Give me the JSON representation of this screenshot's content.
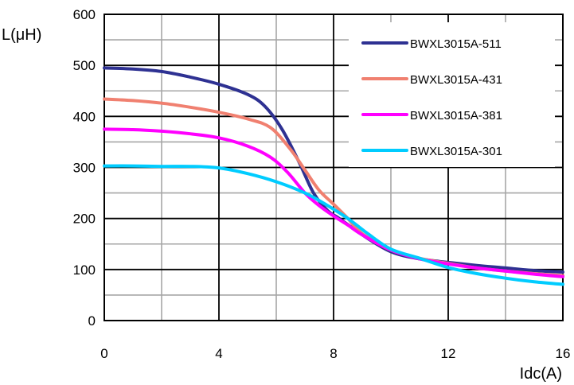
{
  "chart_data": {
    "type": "line",
    "title": "",
    "xlabel": "Idc(A)",
    "ylabel": "L(μH)",
    "xlim": [
      0,
      16
    ],
    "ylim": [
      0,
      600
    ],
    "x_ticks": [
      0,
      4,
      8,
      12,
      16
    ],
    "x_tick_labels": [
      "0",
      "4",
      "8",
      "12",
      "16"
    ],
    "y_ticks": [
      0,
      100,
      200,
      300,
      400,
      500,
      600
    ],
    "y_tick_labels": [
      "0",
      "100",
      "200",
      "300",
      "400",
      "500",
      "600"
    ],
    "x_minor_step": 2,
    "y_minor_step": 50,
    "grid": true,
    "legend_position": "top-right",
    "series": [
      {
        "name": "BWXL3015A-511",
        "color": "#2e3192",
        "points": [
          [
            0,
            495
          ],
          [
            1,
            493
          ],
          [
            2,
            488
          ],
          [
            3,
            477
          ],
          [
            4,
            463
          ],
          [
            5,
            443
          ],
          [
            5.6,
            420
          ],
          [
            6.2,
            375
          ],
          [
            6.8,
            310
          ],
          [
            7.3,
            250
          ],
          [
            7.8,
            215
          ],
          [
            8.2,
            200
          ],
          [
            9,
            168
          ],
          [
            10,
            135
          ],
          [
            11,
            121
          ],
          [
            12,
            114
          ],
          [
            13,
            108
          ],
          [
            14,
            103
          ],
          [
            15,
            98
          ],
          [
            16,
            95
          ]
        ]
      },
      {
        "name": "BWXL3015A-431",
        "color": "#f08070",
        "points": [
          [
            0,
            434
          ],
          [
            1,
            431
          ],
          [
            2,
            426
          ],
          [
            3,
            418
          ],
          [
            4,
            408
          ],
          [
            5,
            395
          ],
          [
            5.8,
            378
          ],
          [
            6.5,
            335
          ],
          [
            7,
            295
          ],
          [
            7.5,
            255
          ],
          [
            8,
            228
          ],
          [
            8.5,
            200
          ],
          [
            9,
            170
          ],
          [
            10,
            138
          ],
          [
            11,
            122
          ],
          [
            12,
            112
          ],
          [
            13,
            103
          ],
          [
            14,
            97
          ],
          [
            15,
            92
          ],
          [
            16,
            88
          ]
        ]
      },
      {
        "name": "BWXL3015A-381",
        "color": "#ff00ff",
        "points": [
          [
            0,
            375
          ],
          [
            1,
            374
          ],
          [
            2,
            371
          ],
          [
            3,
            366
          ],
          [
            4,
            358
          ],
          [
            5,
            342
          ],
          [
            5.8,
            320
          ],
          [
            6.4,
            290
          ],
          [
            7,
            250
          ],
          [
            7.5,
            225
          ],
          [
            8,
            205
          ],
          [
            8.5,
            187
          ],
          [
            9,
            168
          ],
          [
            10,
            138
          ],
          [
            11,
            121
          ],
          [
            12,
            111
          ],
          [
            13,
            103
          ],
          [
            14,
            97
          ],
          [
            15,
            91
          ],
          [
            16,
            86
          ]
        ]
      },
      {
        "name": "BWXL3015A-301",
        "color": "#00ccff",
        "points": [
          [
            0,
            303
          ],
          [
            1,
            303
          ],
          [
            2,
            302
          ],
          [
            3,
            302
          ],
          [
            4,
            299
          ],
          [
            5,
            288
          ],
          [
            6,
            272
          ],
          [
            7,
            250
          ],
          [
            7.8,
            225
          ],
          [
            8.5,
            200
          ],
          [
            9.2,
            170
          ],
          [
            10,
            140
          ],
          [
            11,
            122
          ],
          [
            12,
            104
          ],
          [
            13,
            92
          ],
          [
            14,
            83
          ],
          [
            15,
            76
          ],
          [
            16,
            71
          ]
        ]
      }
    ]
  }
}
